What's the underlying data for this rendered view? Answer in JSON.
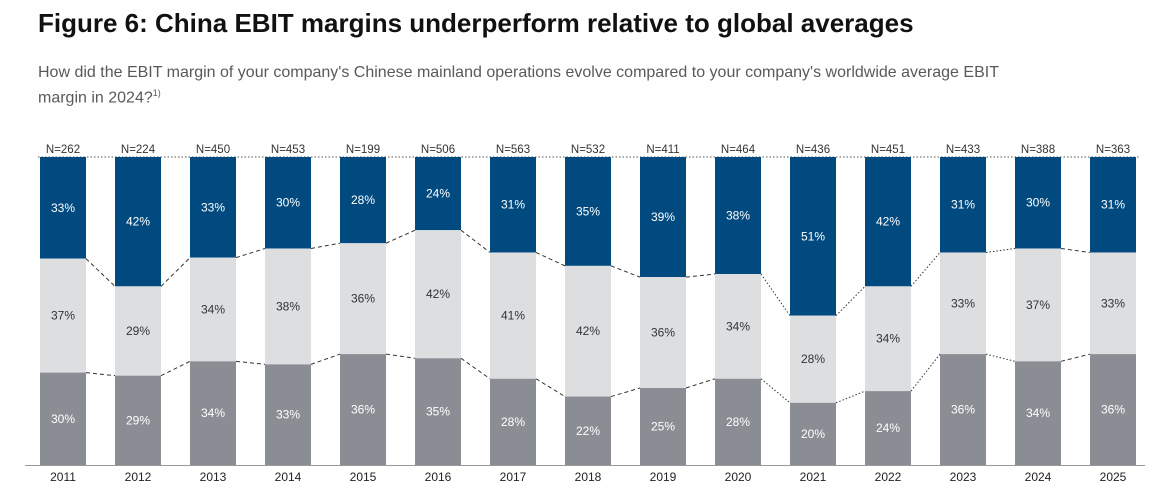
{
  "title": "Figure 6: China EBIT margins underperform relative to global averages",
  "subtitle": "How did the EBIT margin of your company's Chinese mainland operations evolve compared to your company's worldwide average EBIT margin in 2024?",
  "subtitle_footnote": "1)",
  "colors": {
    "top": "#004a80",
    "middle": "#dcdee0",
    "bottom": "#8a8e94",
    "axis": "#999999",
    "connector": "#333333"
  },
  "chart_data": {
    "type": "bar",
    "stacked": "100%",
    "categories": [
      "2011",
      "2012",
      "2013",
      "2014",
      "2015",
      "2016",
      "2017",
      "2018",
      "2019",
      "2020",
      "2021",
      "2022",
      "2023",
      "2024",
      "2025"
    ],
    "n_labels": [
      "N=262",
      "N=224",
      "N=450",
      "N=453",
      "N=199",
      "N=506",
      "N=563",
      "N=532",
      "N=411",
      "N=464",
      "N=436",
      "N=451",
      "N=433",
      "N=388",
      "N=363"
    ],
    "series": [
      {
        "key": "top",
        "values": [
          33,
          42,
          33,
          30,
          28,
          24,
          31,
          35,
          39,
          38,
          51,
          42,
          31,
          30,
          31
        ]
      },
      {
        "key": "middle",
        "values": [
          37,
          29,
          34,
          38,
          36,
          42,
          41,
          42,
          36,
          34,
          28,
          34,
          33,
          37,
          33
        ]
      },
      {
        "key": "bottom",
        "values": [
          30,
          29,
          34,
          33,
          36,
          35,
          28,
          22,
          25,
          28,
          20,
          24,
          36,
          34,
          36
        ]
      }
    ],
    "ylim": [
      0,
      100
    ]
  }
}
